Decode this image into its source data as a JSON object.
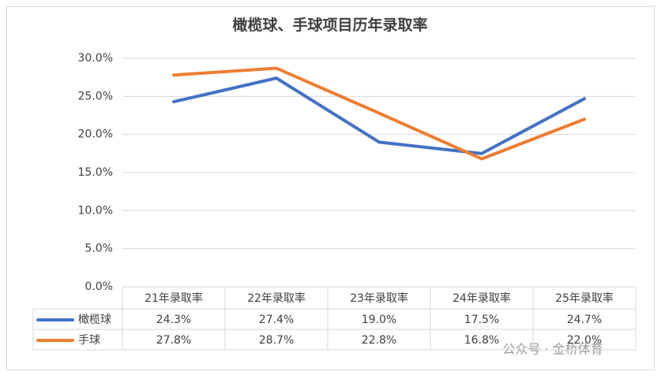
{
  "chart_data": {
    "type": "line",
    "title": "橄榄球、手球项目历年录取率",
    "categories": [
      "21年录取率",
      "22年录取率",
      "23年录取率",
      "24年录取率",
      "25年录取率"
    ],
    "series": [
      {
        "name": "橄榄球",
        "color": "#4472c4",
        "values": [
          24.3,
          27.4,
          19.0,
          17.5,
          24.7
        ],
        "value_labels": [
          "24.3%",
          "27.4%",
          "19.0%",
          "17.5%",
          "24.7%"
        ]
      },
      {
        "name": "手球",
        "color": "#ed7d31",
        "values": [
          27.8,
          28.7,
          22.8,
          16.8,
          22.0
        ],
        "value_labels": [
          "27.8%",
          "28.7%",
          "22.8%",
          "16.8%",
          "22.0%"
        ]
      }
    ],
    "ylim": [
      0,
      30
    ],
    "yticks": [
      {
        "value": 0,
        "label": "0.0%"
      },
      {
        "value": 5,
        "label": "5.0%"
      },
      {
        "value": 10,
        "label": "10.0%"
      },
      {
        "value": 15,
        "label": "15.0%"
      },
      {
        "value": 20,
        "label": "20.0%"
      },
      {
        "value": 25,
        "label": "25.0%"
      },
      {
        "value": 30,
        "label": "30.0%"
      }
    ],
    "grid": true,
    "watermark": "公众号 · 金桥体育"
  }
}
